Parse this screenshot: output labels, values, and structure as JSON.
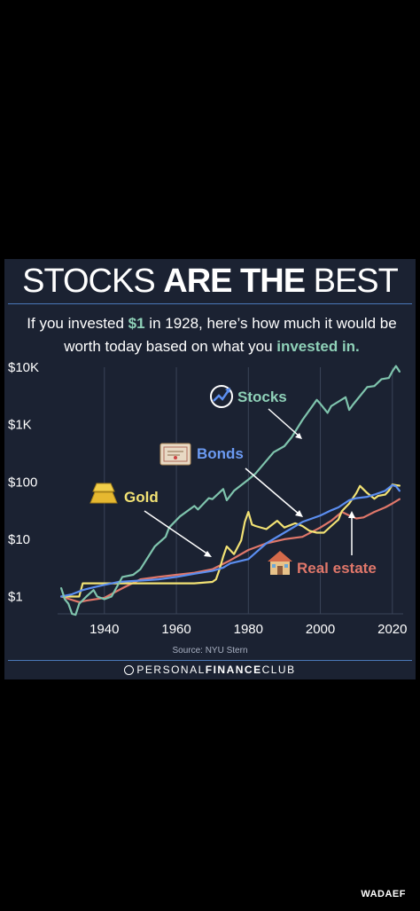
{
  "header": {
    "title_light_1": "STOCKS ",
    "title_bold": "ARE THE",
    "title_light_2": " BEST",
    "subtitle_1": "If you invested ",
    "subtitle_amount": "$1",
    "subtitle_2": " in 1928, here’s how much it would be worth today based on what you ",
    "subtitle_highlight": "invested in.",
    "highlight_color": "#8fd1b8"
  },
  "footer": {
    "source": "Source: NYU Stern",
    "brand_light": "PERSONAL",
    "brand_bold": "FINANCE",
    "brand_end": "CLUB",
    "watermark": "WADAEF"
  },
  "chart_data": {
    "type": "line",
    "y_scale": "log",
    "ylim": [
      0.5,
      10000
    ],
    "xlim": [
      1927,
      2023
    ],
    "y_ticks": [
      {
        "value": 1,
        "label": "$1"
      },
      {
        "value": 10,
        "label": "$10"
      },
      {
        "value": 100,
        "label": "$100"
      },
      {
        "value": 1000,
        "label": "$1K"
      },
      {
        "value": 10000,
        "label": "$10K"
      }
    ],
    "x_ticks": [
      {
        "value": 1940,
        "label": "1940"
      },
      {
        "value": 1960,
        "label": "1960"
      },
      {
        "value": 1980,
        "label": "1980"
      },
      {
        "value": 2000,
        "label": "2000"
      },
      {
        "value": 2020,
        "label": "2020"
      }
    ],
    "grid": "vertical",
    "series": [
      {
        "name": "Stocks",
        "color": "#7fc4ad",
        "x": [
          1928,
          1929,
          1930,
          1931,
          1932,
          1933,
          1935,
          1937,
          1938,
          1940,
          1942,
          1945,
          1948,
          1950,
          1954,
          1957,
          1958,
          1961,
          1965,
          1966,
          1969,
          1970,
          1973,
          1974,
          1976,
          1980,
          1982,
          1987,
          1990,
          1992,
          1995,
          1999,
          2000,
          2002,
          2003,
          2007,
          2008,
          2009,
          2013,
          2015,
          2017,
          2019,
          2020,
          2021,
          2022
        ],
        "y": [
          1.4,
          0.9,
          0.75,
          0.5,
          0.48,
          0.75,
          1.0,
          1.3,
          1.0,
          0.9,
          1.0,
          2.2,
          2.4,
          3.0,
          7.5,
          11,
          16,
          25,
          38,
          33,
          52,
          50,
          75,
          48,
          70,
          110,
          140,
          330,
          420,
          600,
          1200,
          2700,
          2300,
          1600,
          2100,
          3000,
          1800,
          2200,
          4500,
          4700,
          6200,
          6500,
          8500,
          10500,
          8400
        ]
      },
      {
        "name": "Bonds",
        "color": "#5b8ef0",
        "x": [
          1928,
          1931,
          1934,
          1936,
          1940,
          1944,
          1950,
          1955,
          1960,
          1965,
          1970,
          1973,
          1975,
          1980,
          1985,
          1990,
          1995,
          2000,
          2003,
          2005,
          2008,
          2010,
          2013,
          2015,
          2018,
          2020,
          2021,
          2022
        ],
        "y": [
          1.0,
          1.1,
          1.3,
          1.4,
          1.6,
          1.8,
          1.9,
          2.0,
          2.2,
          2.5,
          2.8,
          3.2,
          3.8,
          4.5,
          8.5,
          13,
          20,
          26,
          32,
          36,
          48,
          52,
          55,
          60,
          70,
          88,
          84,
          70
        ]
      },
      {
        "name": "Gold",
        "color": "#f2e274",
        "x": [
          1928,
          1933,
          1934,
          1940,
          1950,
          1960,
          1965,
          1970,
          1971,
          1972,
          1973,
          1974,
          1976,
          1978,
          1979,
          1980,
          1981,
          1982,
          1985,
          1988,
          1990,
          1993,
          1995,
          1997,
          1999,
          2001,
          2003,
          2005,
          2006,
          2008,
          2010,
          2011,
          2013,
          2015,
          2016,
          2018,
          2019,
          2020,
          2021,
          2022
        ],
        "y": [
          1.0,
          1.0,
          1.7,
          1.7,
          1.7,
          1.7,
          1.7,
          1.8,
          2.0,
          3.0,
          5.0,
          7.5,
          5.5,
          9.5,
          20,
          30,
          18,
          17,
          15,
          21,
          16,
          19,
          17,
          14,
          13,
          13,
          17,
          22,
          31,
          42,
          64,
          85,
          64,
          51,
          57,
          60,
          70,
          90,
          88,
          86
        ]
      },
      {
        "name": "Real estate",
        "color": "#e0776a",
        "x": [
          1928,
          1933,
          1935,
          1940,
          1945,
          1950,
          1955,
          1960,
          1965,
          1970,
          1975,
          1980,
          1985,
          1990,
          1995,
          2000,
          2003,
          2006,
          2008,
          2010,
          2012,
          2015,
          2018,
          2020,
          2022
        ],
        "y": [
          1.0,
          0.8,
          0.85,
          0.95,
          1.4,
          2.0,
          2.2,
          2.4,
          2.6,
          3.0,
          4.3,
          6.5,
          8.5,
          10,
          11,
          16,
          21,
          30,
          26,
          23,
          24,
          30,
          36,
          42,
          50
        ]
      }
    ],
    "annotations": [
      {
        "label": "Stocks",
        "icon": "chart-trend-icon",
        "color": "#8fd1b8"
      },
      {
        "label": "Bonds",
        "icon": "bond-certificate-icon",
        "color": "#6b9af2"
      },
      {
        "label": "Gold",
        "icon": "gold-bar-icon",
        "color": "#f2e274"
      },
      {
        "label": "Real estate",
        "icon": "house-icon",
        "color": "#e0776a"
      }
    ]
  }
}
